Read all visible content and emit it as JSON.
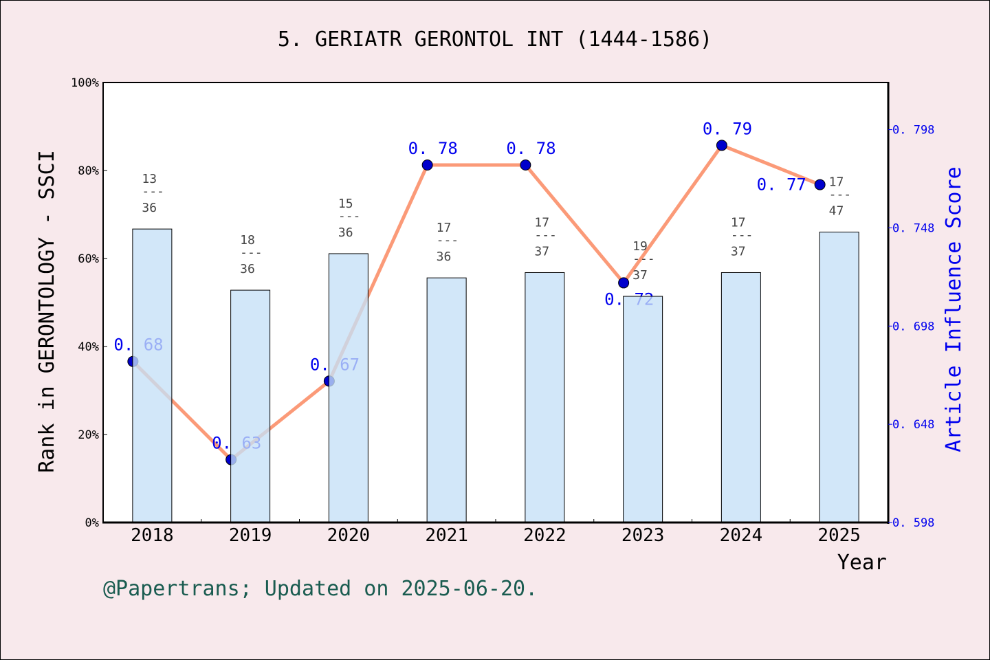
{
  "chart_data": {
    "type": "bar+line",
    "title": "5. GERIATR GERONTOL INT (1444-1586)",
    "xlabel": "Year",
    "ylabel_left": "Rank in GERONTOLOGY - SSCI",
    "ylabel_right": "Article Influence Score",
    "categories": [
      "2018",
      "2019",
      "2020",
      "2021",
      "2022",
      "2023",
      "2024",
      "2025"
    ],
    "left_axis": {
      "range": [
        0,
        100
      ],
      "ticks": [
        "0%",
        "20%",
        "40%",
        "60%",
        "80%",
        "100%"
      ]
    },
    "right_axis": {
      "range": [
        0.598,
        0.822
      ],
      "ticks": [
        "0.598",
        "0.648",
        "0.698",
        "0.748",
        "0.798"
      ]
    },
    "bars": {
      "unit": "percent",
      "values": [
        66.7,
        52.8,
        61.1,
        55.6,
        56.8,
        51.4,
        56.8,
        66.0
      ],
      "rank_labels": [
        {
          "rank": "13",
          "total": "36"
        },
        {
          "rank": "18",
          "total": "36"
        },
        {
          "rank": "15",
          "total": "36"
        },
        {
          "rank": "17",
          "total": "36"
        },
        {
          "rank": "17",
          "total": "37"
        },
        {
          "rank": "19",
          "total": "37"
        },
        {
          "rank": "17",
          "total": "37"
        },
        {
          "rank": "17",
          "total": "47"
        }
      ],
      "color": "#c5e0f7"
    },
    "line": {
      "values": [
        0.68,
        0.63,
        0.67,
        0.78,
        0.78,
        0.72,
        0.79,
        0.77
      ],
      "labels": [
        "0.68",
        "0.63",
        "0.67",
        "0.78",
        "0.78",
        "0.72",
        "0.79",
        "0.77"
      ],
      "line_color": "#fb9a78",
      "marker_color": "#0000cc",
      "label_color": "#0000ee"
    },
    "grid": false
  },
  "footer": {
    "text": "@Papertrans; Updated on 2025-06-20."
  }
}
